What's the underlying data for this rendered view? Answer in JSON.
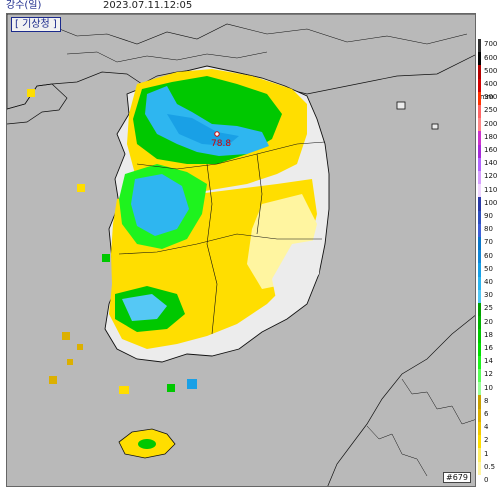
{
  "header": {
    "product": "강수(일)",
    "timestamp": "2023.07.11.12:05"
  },
  "map": {
    "agency_label": "[ 기상청 ]",
    "station_label": "#679",
    "max_marker_value": "78.8",
    "background_color": "#b9b9b9",
    "land_color": "#ececec"
  },
  "legend": {
    "unit": "mm",
    "levels": [
      {
        "label": "700",
        "color": "#333333"
      },
      {
        "label": "600",
        "color": "#000000"
      },
      {
        "label": "500",
        "color": "#b30000"
      },
      {
        "label": "400",
        "color": "#d20000"
      },
      {
        "label": "300",
        "color": "#ff3300"
      },
      {
        "label": "250",
        "color": "#ff6666"
      },
      {
        "label": "200",
        "color": "#ff8888"
      },
      {
        "label": "180",
        "color": "#cc33cc"
      },
      {
        "label": "160",
        "color": "#a62bd9"
      },
      {
        "label": "140",
        "color": "#b366ff"
      },
      {
        "label": "120",
        "color": "#d7a0ff"
      },
      {
        "label": "110",
        "color": "#f0d6ff"
      },
      {
        "label": "100",
        "color": "#2a3aa8"
      },
      {
        "label": "90",
        "color": "#3050c0"
      },
      {
        "label": "80",
        "color": "#4060d8"
      },
      {
        "label": "70",
        "color": "#0b77c9"
      },
      {
        "label": "60",
        "color": "#1388d8"
      },
      {
        "label": "50",
        "color": "#19a0e6"
      },
      {
        "label": "40",
        "color": "#2eb6f0"
      },
      {
        "label": "30",
        "color": "#55c8f5"
      },
      {
        "label": "25",
        "color": "#00a000"
      },
      {
        "label": "20",
        "color": "#00b400"
      },
      {
        "label": "18",
        "color": "#00c800"
      },
      {
        "label": "16",
        "color": "#00dd00"
      },
      {
        "label": "14",
        "color": "#1ef31e"
      },
      {
        "label": "12",
        "color": "#5aff5a"
      },
      {
        "label": "10",
        "color": "#9bff9b"
      },
      {
        "label": "8",
        "color": "#c8a000"
      },
      {
        "label": "6",
        "color": "#dcb000"
      },
      {
        "label": "4",
        "color": "#f0c800"
      },
      {
        "label": "2",
        "color": "#ffde00"
      },
      {
        "label": "1",
        "color": "#ffee66"
      },
      {
        "label": "0.5",
        "color": "#fff5a0"
      },
      {
        "label": "0",
        "color": "#ffffff"
      }
    ]
  }
}
